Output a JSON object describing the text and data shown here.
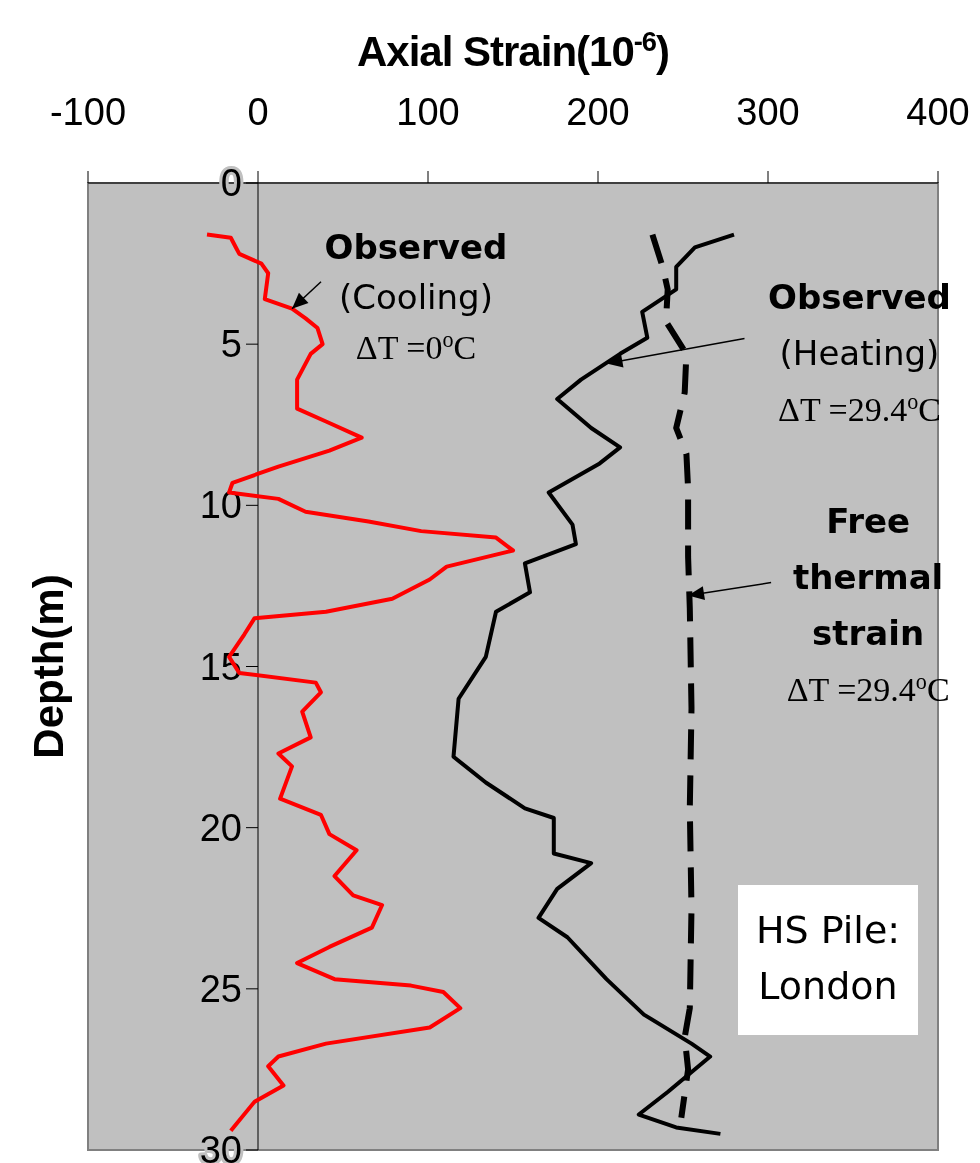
{
  "chart_data": {
    "type": "line",
    "xlabel": "Axial Strain(10$^{-6}$)",
    "ylabel": "Depth(m)",
    "xlim": [
      -100,
      400
    ],
    "xticks": [
      -100,
      0,
      100,
      200,
      300,
      400
    ],
    "ylim": [
      30,
      0
    ],
    "yticks": [
      0,
      5,
      10,
      15,
      20,
      25,
      30
    ],
    "grid": false,
    "series": [
      {
        "color": "#ff0000",
        "line_style": "solid",
        "x": [
          -30,
          -16,
          -13,
          -11,
          2,
          6,
          4,
          20,
          28,
          35,
          38,
          31,
          23,
          23,
          40,
          61,
          42,
          12,
          -15,
          -17,
          12,
          28,
          65,
          96,
          140,
          150,
          111,
          101,
          79,
          40,
          -2,
          -8,
          -17,
          -11,
          34,
          37,
          26,
          31,
          12,
          20,
          13,
          37,
          42,
          58,
          45,
          56,
          73,
          67,
          42,
          23,
          45,
          90,
          109,
          119,
          101,
          40,
          12,
          6,
          15,
          -2,
          -16
        ],
        "values": [
          1.6,
          1.7,
          2.0,
          2.2,
          2.5,
          2.8,
          3.6,
          3.9,
          4.2,
          4.5,
          5.0,
          5.3,
          6.1,
          7.0,
          7.4,
          7.9,
          8.3,
          8.8,
          9.3,
          9.6,
          9.8,
          10.2,
          10.5,
          10.8,
          11.0,
          11.4,
          11.9,
          12.3,
          12.9,
          13.3,
          13.5,
          14.0,
          14.7,
          15.2,
          15.5,
          15.8,
          16.4,
          17.2,
          17.7,
          18.1,
          19.1,
          19.6,
          20.2,
          20.7,
          21.5,
          22.1,
          22.4,
          23.1,
          23.7,
          24.2,
          24.7,
          24.9,
          25.1,
          25.6,
          26.2,
          26.7,
          27.1,
          27.4,
          28.0,
          28.5,
          29.4
        ]
      },
      {
        "color": "#000000",
        "line_style": "solid",
        "x": [
          280,
          257,
          246,
          246,
          226,
          229,
          213,
          190,
          176,
          196,
          213,
          201,
          171,
          185,
          187,
          157,
          160,
          140,
          134,
          118,
          115,
          134,
          157,
          174,
          174,
          196,
          176,
          165,
          182,
          205,
          227,
          255,
          266,
          241,
          224,
          246,
          272
        ],
        "values": [
          1.6,
          2.0,
          2.6,
          3.3,
          4.0,
          4.8,
          5.3,
          6.1,
          6.7,
          7.6,
          8.2,
          8.7,
          9.6,
          10.6,
          11.2,
          11.8,
          12.7,
          13.3,
          14.7,
          16.0,
          17.8,
          18.6,
          19.4,
          19.7,
          20.8,
          21.1,
          21.9,
          22.8,
          23.4,
          24.7,
          25.8,
          26.7,
          27.1,
          28.2,
          28.9,
          29.3,
          29.5
        ]
      },
      {
        "color": "#000000",
        "line_style": "dashed",
        "x": [
          232,
          238,
          241,
          240,
          252,
          251,
          246,
          252,
          253,
          253,
          254,
          255,
          254,
          255,
          254,
          251,
          253,
          249
        ],
        "values": [
          1.6,
          2.6,
          3.3,
          4.3,
          5.3,
          6.5,
          7.6,
          8.4,
          9.5,
          11.6,
          13.2,
          16.3,
          19.4,
          22.5,
          25.6,
          26.5,
          27.5,
          29.0
        ]
      }
    ],
    "annotations": [
      {
        "text": "Observed\n(Cooling)\nΔT =0$^{o}$C",
        "x": 20,
        "y": 3.9
      },
      {
        "text": "Observed\n(Heating)\nΔT =29.4$^{o}$C",
        "x": 205,
        "y": 5.6
      },
      {
        "text": "Free\nthermal\nstrain\nΔT =29.4$^{o}$C",
        "x": 253,
        "y": 12.8
      },
      "HS Pile:\nLondon"
    ]
  }
}
